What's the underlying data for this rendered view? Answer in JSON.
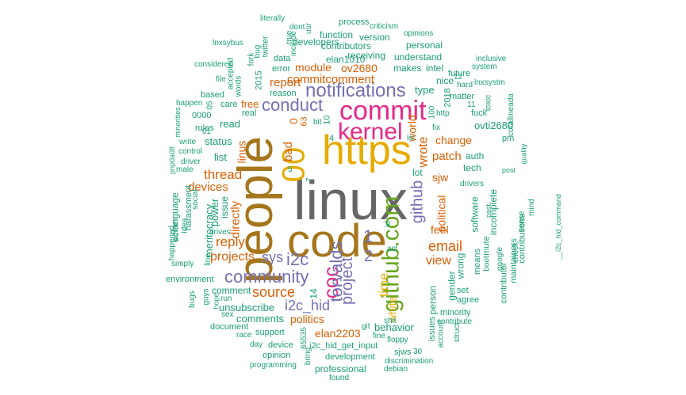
{
  "colors": {
    "gray": "#666666",
    "brown": "#a6761d",
    "gold": "#e6ab02",
    "pink": "#e7298a",
    "green": "#66a61e",
    "purple": "#7570b3",
    "orange": "#d95f02",
    "teal": "#1b9e77"
  },
  "words": [
    {
      "text": "linux",
      "color": "gray"
    },
    {
      "text": "people",
      "color": "brown"
    },
    {
      "text": "code",
      "color": "brown"
    },
    {
      "text": "https",
      "color": "gold"
    },
    {
      "text": "00",
      "color": "gold"
    },
    {
      "text": "commit",
      "color": "pink"
    },
    {
      "text": "kernel",
      "color": "pink"
    },
    {
      "text": "github.com",
      "color": "green"
    },
    {
      "text": "notifications",
      "color": "purple"
    },
    {
      "text": "conduct",
      "color": "purple"
    },
    {
      "text": "coc",
      "color": "pink"
    },
    {
      "text": "torvalds",
      "color": "purple"
    },
    {
      "text": "project",
      "color": "purple"
    },
    {
      "text": "community",
      "color": "purple"
    },
    {
      "text": "i2c",
      "color": "purple"
    },
    {
      "text": "github",
      "color": "purple"
    },
    {
      "text": "i2c_hid",
      "color": "purple"
    },
    {
      "text": "sys",
      "color": "purple"
    },
    {
      "text": "source",
      "color": "orange"
    },
    {
      "text": "email",
      "color": "orange"
    },
    {
      "text": "thread",
      "color": "orange"
    },
    {
      "text": "reply",
      "color": "orange"
    },
    {
      "text": "projects",
      "color": "orange"
    },
    {
      "text": "1",
      "color": "purple"
    },
    {
      "text": "2",
      "color": "purple"
    },
    {
      "text": "commitcomment",
      "color": "orange"
    },
    {
      "text": "report",
      "color": "orange"
    },
    {
      "text": "wrote",
      "color": "orange"
    },
    {
      "text": "time",
      "color": "gold"
    },
    {
      "text": "view",
      "color": "orange"
    },
    {
      "text": "devices",
      "color": "orange"
    },
    {
      "text": "directly",
      "color": "orange"
    },
    {
      "text": "linus",
      "color": "orange"
    },
    {
      "text": "patch",
      "color": "orange"
    },
    {
      "text": "bad",
      "color": "orange"
    },
    {
      "text": "change",
      "color": "orange"
    },
    {
      "text": "politics",
      "color": "orange"
    },
    {
      "text": "elan2203",
      "color": "orange"
    },
    {
      "text": "world",
      "color": "orange"
    },
    {
      "text": "ov2680",
      "color": "orange"
    },
    {
      "text": "module",
      "color": "orange"
    },
    {
      "text": "white",
      "color": "gold"
    },
    {
      "text": "political",
      "color": "orange"
    },
    {
      "text": "sjw",
      "color": "orange"
    },
    {
      "text": "feel",
      "color": "orange"
    },
    {
      "text": "free",
      "color": "orange"
    },
    {
      "text": "type",
      "color": "teal"
    },
    {
      "text": "lot",
      "color": "teal"
    },
    {
      "text": "comments",
      "color": "teal"
    },
    {
      "text": "unsubscribe",
      "color": "teal"
    },
    {
      "text": "behavior",
      "color": "teal"
    },
    {
      "text": "status",
      "color": "teal"
    },
    {
      "text": "read",
      "color": "teal"
    },
    {
      "text": "list",
      "color": "teal"
    },
    {
      "text": "power",
      "color": "teal"
    },
    {
      "text": "issue",
      "color": "teal"
    },
    {
      "text": "comment",
      "color": "teal"
    },
    {
      "text": "meritocracy",
      "color": "teal"
    },
    {
      "text": "language",
      "color": "teal"
    },
    {
      "text": "person",
      "color": "teal"
    },
    {
      "text": "gender",
      "color": "teal"
    },
    {
      "text": "wrong",
      "color": "teal"
    },
    {
      "text": "software",
      "color": "teal"
    },
    {
      "text": "incomplete",
      "color": "teal"
    },
    {
      "text": "auth",
      "color": "teal"
    },
    {
      "text": "tech",
      "color": "teal"
    },
    {
      "text": "ovti2680",
      "color": "teal"
    },
    {
      "text": "receiving",
      "color": "teal"
    },
    {
      "text": "elan1010",
      "color": "teal"
    },
    {
      "text": "makes",
      "color": "teal"
    },
    {
      "text": "intel",
      "color": "teal"
    },
    {
      "text": "nice",
      "color": "teal"
    },
    {
      "text": "understand",
      "color": "teal"
    },
    {
      "text": "function",
      "color": "teal"
    },
    {
      "text": "version",
      "color": "teal"
    },
    {
      "text": "contributors",
      "color": "teal"
    },
    {
      "text": "developers",
      "color": "teal"
    },
    {
      "text": "personal",
      "color": "teal"
    },
    {
      "text": "process",
      "color": "teal"
    },
    {
      "text": "criticism",
      "color": "teal"
    },
    {
      "text": "opinions",
      "color": "teal"
    },
    {
      "text": "literally",
      "color": "teal"
    },
    {
      "text": "dont",
      "color": "teal"
    },
    {
      "text": "usr",
      "color": "teal"
    },
    {
      "text": "true",
      "color": "teal"
    },
    {
      "text": "include",
      "color": "teal"
    },
    {
      "text": "twitter",
      "color": "teal"
    },
    {
      "text": "bug",
      "color": "teal"
    },
    {
      "text": "fork",
      "color": "teal"
    },
    {
      "text": "data",
      "color": "teal"
    },
    {
      "text": "error",
      "color": "teal"
    },
    {
      "text": "lnxsybus",
      "color": "teal"
    },
    {
      "text": "considered",
      "color": "teal"
    },
    {
      "text": "accepted",
      "color": "teal"
    },
    {
      "text": "words",
      "color": "teal"
    },
    {
      "text": "file",
      "color": "teal"
    },
    {
      "text": "2015",
      "color": "teal"
    },
    {
      "text": "reason",
      "color": "teal"
    },
    {
      "text": "based",
      "color": "teal"
    },
    {
      "text": "care",
      "color": "teal"
    },
    {
      "text": "real",
      "color": "teal"
    },
    {
      "text": "happen",
      "color": "teal"
    },
    {
      "text": "05",
      "color": "teal"
    },
    {
      "text": "minorities",
      "color": "teal"
    },
    {
      "text": "0000",
      "color": "teal"
    },
    {
      "text": "rules",
      "color": "teal"
    },
    {
      "text": "01",
      "color": "teal"
    },
    {
      "text": "write",
      "color": "teal"
    },
    {
      "text": "control",
      "color": "teal"
    },
    {
      "text": "driver",
      "color": "teal"
    },
    {
      "text": "pnp0a08",
      "color": "teal"
    },
    {
      "text": "male",
      "color": "teal"
    },
    {
      "text": "harassment",
      "color": "teal"
    },
    {
      "text": "social",
      "color": "teal"
    },
    {
      "text": "idea",
      "color": "teal"
    },
    {
      "text": "sic",
      "color": "teal"
    },
    {
      "text": "women",
      "color": "teal"
    },
    {
      "text": "drives",
      "color": "teal"
    },
    {
      "text": "happened",
      "color": "teal"
    },
    {
      "text": "simply",
      "color": "teal"
    },
    {
      "text": "environment",
      "color": "teal"
    },
    {
      "text": "line",
      "color": "teal"
    },
    {
      "text": "bugs",
      "color": "teal"
    },
    {
      "text": "guys",
      "color": "teal"
    },
    {
      "text": "hope",
      "color": "teal"
    },
    {
      "text": "run",
      "color": "teal"
    },
    {
      "text": "sex",
      "color": "teal"
    },
    {
      "text": "document",
      "color": "teal"
    },
    {
      "text": "race",
      "color": "teal"
    },
    {
      "text": "support",
      "color": "teal"
    },
    {
      "text": "day",
      "color": "teal"
    },
    {
      "text": "device",
      "color": "teal"
    },
    {
      "text": "opinion",
      "color": "teal"
    },
    {
      "text": "programming",
      "color": "teal"
    },
    {
      "text": "65535",
      "color": "teal"
    },
    {
      "text": "14",
      "color": "teal"
    },
    {
      "text": "bring",
      "color": "teal"
    },
    {
      "text": "professional",
      "color": "teal"
    },
    {
      "text": "found",
      "color": "teal"
    },
    {
      "text": "development",
      "color": "teal"
    },
    {
      "text": "i2c_hid_get_input",
      "color": "teal"
    },
    {
      "text": "git",
      "color": "teal"
    },
    {
      "text": "fine",
      "color": "teal"
    },
    {
      "text": "floppy",
      "color": "teal"
    },
    {
      "text": "shit",
      "color": "teal"
    },
    {
      "text": "sjws",
      "color": "teal"
    },
    {
      "text": "30",
      "color": "teal"
    },
    {
      "text": "discrimination",
      "color": "teal"
    },
    {
      "text": "debian",
      "color": "teal"
    },
    {
      "text": "issues",
      "color": "teal"
    },
    {
      "text": "account",
      "color": "teal"
    },
    {
      "text": "contribute",
      "color": "teal"
    },
    {
      "text": "struct",
      "color": "teal"
    },
    {
      "text": "minority",
      "color": "teal"
    },
    {
      "text": "agree",
      "color": "teal"
    },
    {
      "text": "set",
      "color": "teal"
    },
    {
      "text": "means",
      "color": "teal"
    },
    {
      "text": "mute",
      "color": "teal"
    },
    {
      "text": "boot",
      "color": "teal"
    },
    {
      "text": "google",
      "color": "teal"
    },
    {
      "text": "contributor",
      "color": "teal"
    },
    {
      "text": "maintainers",
      "color": "teal"
    },
    {
      "text": "contributions",
      "color": "teal"
    },
    {
      "text": "check",
      "color": "teal"
    },
    {
      "text": "sense",
      "color": "teal"
    },
    {
      "text": "mind",
      "color": "teal"
    },
    {
      "text": "__i2c_hid_command",
      "color": "teal"
    },
    {
      "text": "post",
      "color": "teal"
    },
    {
      "text": "quality",
      "color": "teal"
    },
    {
      "text": "past",
      "color": "teal"
    },
    {
      "text": "drivers",
      "color": "teal"
    },
    {
      "text": "pm",
      "color": "teal"
    },
    {
      "text": "corallineada",
      "color": "teal"
    },
    {
      "text": "fuck",
      "color": "teal"
    },
    {
      "text": "11",
      "color": "teal"
    },
    {
      "text": "toxic",
      "color": "teal"
    },
    {
      "text": "matter",
      "color": "teal"
    },
    {
      "text": "hard",
      "color": "teal"
    },
    {
      "text": "lnxsystm",
      "color": "teal"
    },
    {
      "text": "system",
      "color": "teal"
    },
    {
      "text": "inclusive",
      "color": "teal"
    },
    {
      "text": "future",
      "color": "teal"
    },
    {
      "text": "12",
      "color": "teal"
    },
    {
      "text": "2018",
      "color": "teal"
    },
    {
      "text": "100",
      "color": "teal"
    },
    {
      "text": "http",
      "color": "teal"
    },
    {
      "text": "fix",
      "color": "teal"
    },
    {
      "text": "lol",
      "color": "teal"
    },
    {
      "text": "10",
      "color": "teal"
    },
    {
      "text": "bit",
      "color": "teal"
    },
    {
      "text": "63",
      "color": "orange"
    },
    {
      "text": "0",
      "color": "orange"
    },
    {
      "text": "4",
      "color": "teal"
    },
    {
      "text": "5",
      "color": "teal"
    },
    {
      "text": "7",
      "color": "teal"
    },
    {
      "text": "id",
      "color": "teal"
    },
    {
      "text": "act",
      "color": "teal"
    }
  ]
}
